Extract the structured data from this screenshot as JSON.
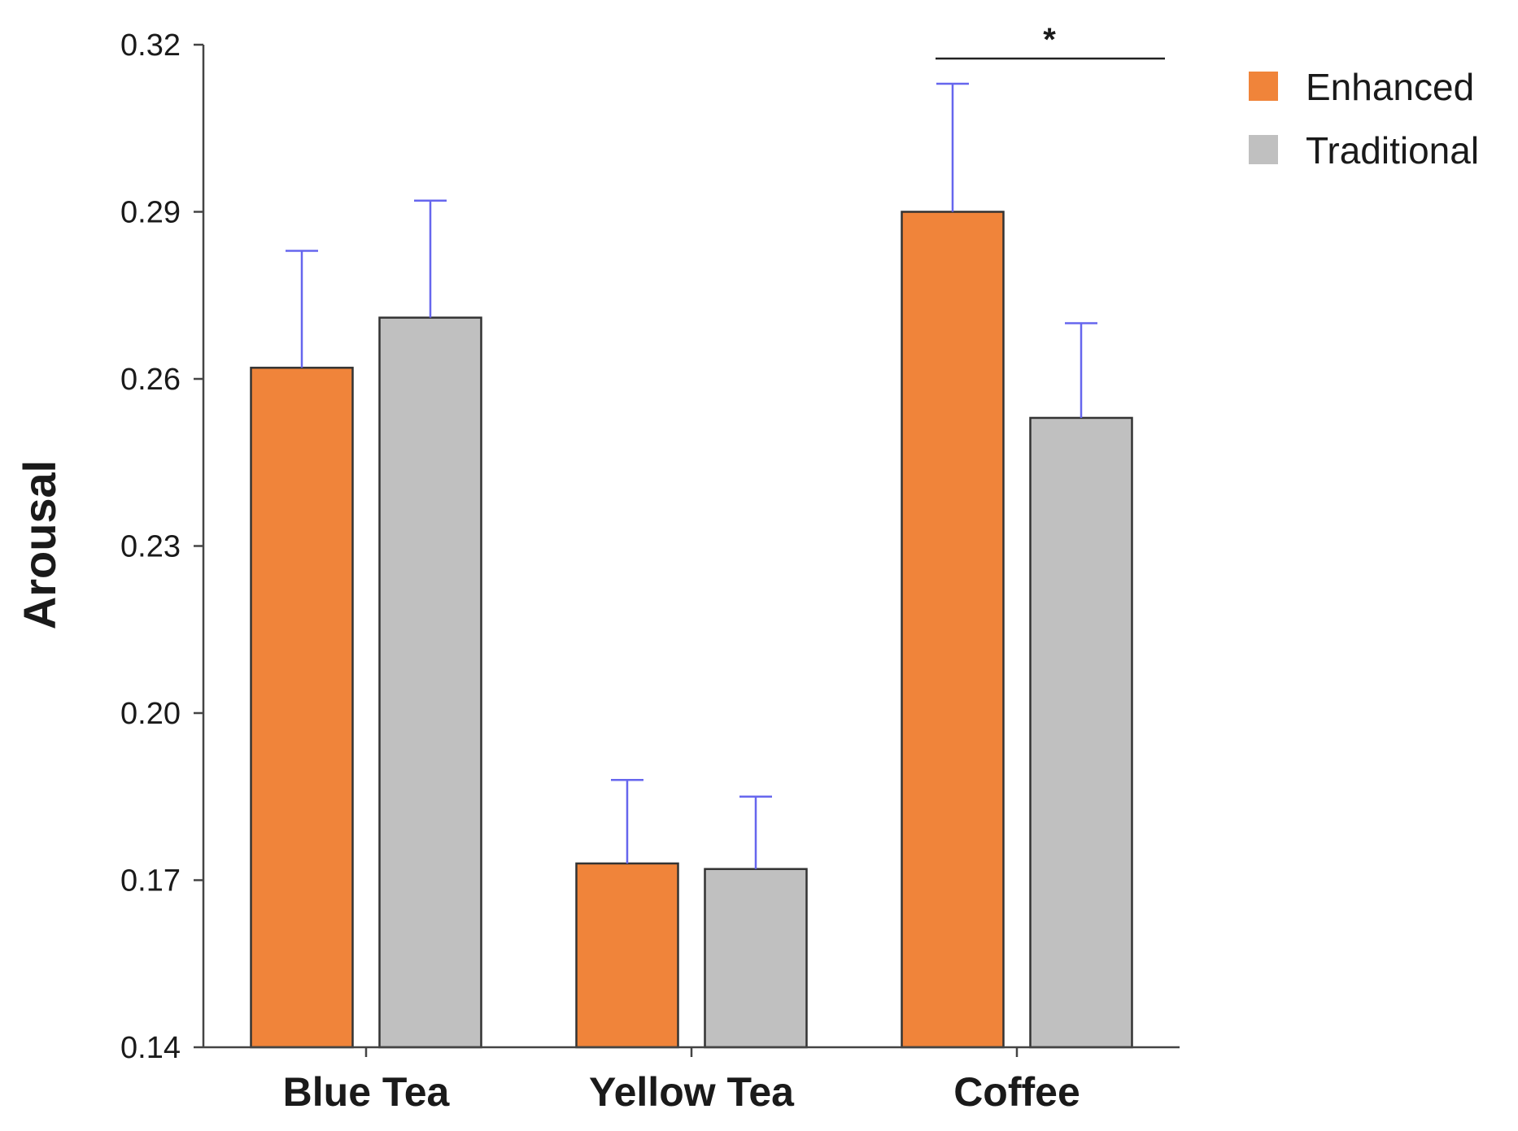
{
  "chart_data": {
    "type": "bar",
    "title": "",
    "xlabel": "",
    "ylabel": "Arousal",
    "ylim": [
      0.14,
      0.32
    ],
    "yticks": [
      0.14,
      0.17,
      0.2,
      0.23,
      0.26,
      0.29,
      0.32
    ],
    "ytick_labels": [
      "0.14",
      "0.17",
      "0.20",
      "0.23",
      "0.26",
      "0.29",
      "0.32"
    ],
    "categories": [
      "Blue Tea",
      "Yellow Tea",
      "Coffee"
    ],
    "series": [
      {
        "name": "Enhanced",
        "color": "#f0843a",
        "values": [
          0.262,
          0.173,
          0.29
        ],
        "errors": [
          0.021,
          0.015,
          0.023
        ]
      },
      {
        "name": "Traditional",
        "color": "#c0c0c0",
        "values": [
          0.271,
          0.172,
          0.253
        ],
        "errors": [
          0.021,
          0.013,
          0.017
        ]
      }
    ],
    "error_bar_color": "#6666ee",
    "grid": false,
    "legend": {
      "position": "top-right"
    },
    "annotations": [
      {
        "text": "*",
        "category": "Coffee",
        "type": "significance-bracket"
      }
    ]
  }
}
